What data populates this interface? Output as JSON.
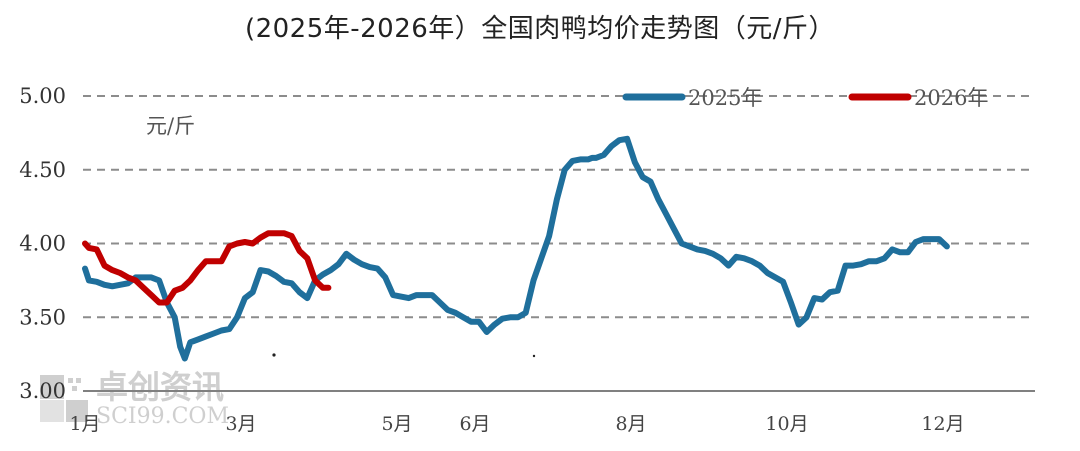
{
  "title": "(2025年-2026年）全国肉鸭均价走势图（元/斤）",
  "unit_label": "元/斤",
  "watermark": {
    "cn": "卓创资讯",
    "en": "SCI99.COM"
  },
  "colors": {
    "series_2025": "#1f6f9c",
    "series_2026": "#c00000",
    "grid": "#8c8c8c",
    "axis": "#808080"
  },
  "legend": [
    {
      "label": "2025年",
      "color": "#1f6f9c"
    },
    {
      "label": "2026年",
      "color": "#c00000"
    }
  ],
  "chart_data": {
    "type": "line",
    "title": "(2025年-2026年）全国肉鸭均价走势图（元/斤）",
    "xlabel": "",
    "ylabel": "元/斤",
    "ylim": [
      3.0,
      5.0
    ],
    "yticks": [
      "3.00",
      "3.50",
      "4.00",
      "4.50",
      "5.00"
    ],
    "xticks": [
      "1月",
      "3月",
      "5月",
      "6月",
      "8月",
      "10月",
      "12月"
    ],
    "xtick_month": [
      1,
      3,
      5,
      6,
      8,
      10,
      12
    ],
    "grid": "horizontal dashed",
    "legend_position": "top-right",
    "x_unit": "month (fractional, 1.0 = start of Jan)",
    "series": [
      {
        "name": "2025年",
        "color": "#1f6f9c",
        "x": [
          1.0,
          1.05,
          1.15,
          1.25,
          1.35,
          1.45,
          1.55,
          1.65,
          1.75,
          1.85,
          1.95,
          2.05,
          2.15,
          2.22,
          2.28,
          2.35,
          2.45,
          2.55,
          2.65,
          2.75,
          2.85,
          2.95,
          3.05,
          3.15,
          3.25,
          3.35,
          3.45,
          3.55,
          3.65,
          3.75,
          3.85,
          3.95,
          4.05,
          4.15,
          4.25,
          4.35,
          4.45,
          4.55,
          4.65,
          4.75,
          4.85,
          4.95,
          5.05,
          5.15,
          5.25,
          5.35,
          5.45,
          5.55,
          5.65,
          5.75,
          5.85,
          5.95,
          6.05,
          6.15,
          6.25,
          6.35,
          6.45,
          6.55,
          6.65,
          6.75,
          6.85,
          6.95,
          7.05,
          7.15,
          7.25,
          7.35,
          7.45,
          7.5,
          7.55,
          7.65,
          7.75,
          7.85,
          7.95,
          8.05,
          8.15,
          8.25,
          8.35,
          8.45,
          8.55,
          8.65,
          8.75,
          8.85,
          8.95,
          9.05,
          9.15,
          9.25,
          9.35,
          9.45,
          9.55,
          9.65,
          9.75,
          9.85,
          9.95,
          10.05,
          10.15,
          10.25,
          10.35,
          10.45,
          10.55,
          10.65,
          10.75,
          10.85,
          10.95,
          11.05,
          11.15,
          11.25,
          11.35,
          11.45,
          11.55,
          11.65,
          11.75,
          11.85,
          11.95,
          12.05
        ],
        "values": [
          3.83,
          3.75,
          3.74,
          3.72,
          3.71,
          3.72,
          3.73,
          3.77,
          3.77,
          3.77,
          3.75,
          3.6,
          3.5,
          3.3,
          3.22,
          3.33,
          3.35,
          3.37,
          3.39,
          3.41,
          3.42,
          3.5,
          3.63,
          3.67,
          3.82,
          3.81,
          3.78,
          3.74,
          3.73,
          3.67,
          3.63,
          3.75,
          3.79,
          3.82,
          3.86,
          3.93,
          3.89,
          3.86,
          3.84,
          3.83,
          3.77,
          3.65,
          3.64,
          3.63,
          3.65,
          3.65,
          3.65,
          3.6,
          3.55,
          3.53,
          3.5,
          3.47,
          3.47,
          3.4,
          3.45,
          3.49,
          3.5,
          3.5,
          3.53,
          3.75,
          3.9,
          4.05,
          4.3,
          4.5,
          4.56,
          4.57,
          4.57,
          4.58,
          4.58,
          4.6,
          4.66,
          4.7,
          4.71,
          4.55,
          4.45,
          4.42,
          4.3,
          4.2,
          4.1,
          4.0,
          3.98,
          3.96,
          3.95,
          3.93,
          3.9,
          3.85,
          3.91,
          3.9,
          3.88,
          3.85,
          3.8,
          3.77,
          3.74,
          3.6,
          3.45,
          3.5,
          3.63,
          3.62,
          3.67,
          3.68,
          3.85,
          3.85,
          3.86,
          3.88,
          3.88,
          3.9,
          3.96,
          3.94,
          3.94,
          4.01,
          4.03,
          4.03,
          4.03,
          3.98
        ]
      },
      {
        "name": "2026年",
        "color": "#c00000",
        "x": [
          1.0,
          1.05,
          1.15,
          1.25,
          1.35,
          1.45,
          1.55,
          1.65,
          1.75,
          1.85,
          1.95,
          2.05,
          2.15,
          2.25,
          2.35,
          2.45,
          2.55,
          2.65,
          2.75,
          2.85,
          2.95,
          3.05,
          3.15,
          3.25,
          3.35,
          3.45,
          3.55,
          3.65,
          3.75,
          3.85,
          3.95,
          4.05,
          4.12
        ],
        "values": [
          4.0,
          3.97,
          3.96,
          3.85,
          3.82,
          3.8,
          3.77,
          3.75,
          3.7,
          3.65,
          3.6,
          3.6,
          3.68,
          3.7,
          3.75,
          3.82,
          3.88,
          3.88,
          3.88,
          3.98,
          4.0,
          4.01,
          4.0,
          4.04,
          4.07,
          4.07,
          4.07,
          4.05,
          3.95,
          3.9,
          3.75,
          3.7,
          3.7
        ]
      }
    ]
  }
}
